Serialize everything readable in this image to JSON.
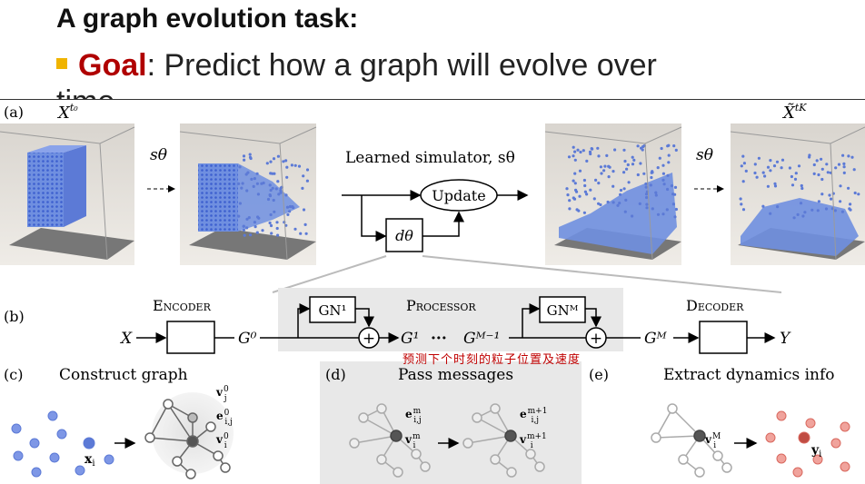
{
  "slide": {
    "title": "A graph evolution task:",
    "bullet_goal": "Goal",
    "bullet_text": ": Predict how a graph will evolve over",
    "bullet_overflow": "time"
  },
  "figure": {
    "panel_a": "(a)",
    "panel_b": "(b)",
    "panel_c": "(c)",
    "panel_d": "(d)",
    "panel_e": "(e)",
    "x_t0": "X",
    "x_t0_sup": "t₀",
    "x_tk": "X̃",
    "x_tk_sup": "tK",
    "s_theta": "sθ",
    "learned_simulator": "Learned simulator, sθ",
    "update": "Update",
    "d_theta": "dθ",
    "encoder": "Encoder",
    "processor": "Processor",
    "decoder": "Decoder",
    "gn1": "GN¹",
    "gnm": "GNᴹ",
    "x_in": "X",
    "g0": "G⁰",
    "g1": "G¹",
    "dots": "···",
    "gm_minus1": "Gᴹ⁻¹",
    "gm": "Gᴹ",
    "y_out": "Y",
    "construct_graph": "Construct graph",
    "pass_messages": "Pass messages",
    "extract_dynamics": "Extract dynamics info",
    "handwritten_note": "预测下个时刻的粒子位置及速度"
  },
  "colors": {
    "goal": "#b00000",
    "bullet": "#f0b400",
    "particle_blue": "#6f8fe0",
    "particle_red": "#e06a62"
  }
}
